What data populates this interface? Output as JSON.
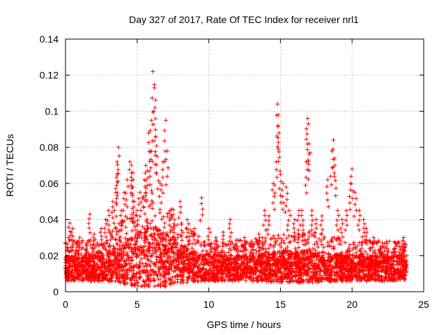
{
  "chart_data": {
    "type": "scatter",
    "title": "Day 327 of 2017, Rate Of TEC Index for receiver nrl1",
    "xlabel": "GPS time / hours",
    "ylabel": "ROTI / TECUs",
    "xlim": [
      0,
      25
    ],
    "ylim": [
      0,
      0.14
    ],
    "xticks": [
      "0",
      "5",
      "10",
      "15",
      "20",
      "25"
    ],
    "yticks": [
      "0",
      "0.02",
      "0.04",
      "0.06",
      "0.08",
      "0.1",
      "0.12",
      "0.14"
    ],
    "grid": true,
    "legend": "none",
    "marker": "plus",
    "color": "#ff0000",
    "series": [
      {
        "points": [
          [
            0.1,
            0.012
          ],
          [
            0.2,
            0.03
          ],
          [
            0.3,
            0.038
          ],
          [
            0.5,
            0.035
          ],
          [
            0.8,
            0.028
          ],
          [
            1.0,
            0.03
          ],
          [
            1.5,
            0.027
          ],
          [
            1.7,
            0.043
          ],
          [
            2.0,
            0.032
          ],
          [
            2.5,
            0.035
          ],
          [
            2.8,
            0.04
          ],
          [
            3.0,
            0.045
          ],
          [
            3.3,
            0.05
          ],
          [
            3.5,
            0.055
          ],
          [
            3.6,
            0.065
          ],
          [
            3.6,
            0.072
          ],
          [
            3.7,
            0.08
          ],
          [
            3.9,
            0.045
          ],
          [
            4.1,
            0.055
          ],
          [
            4.3,
            0.062
          ],
          [
            4.5,
            0.072
          ],
          [
            4.6,
            0.07
          ],
          [
            4.7,
            0.066
          ],
          [
            4.8,
            0.05
          ],
          [
            5.0,
            0.045
          ],
          [
            5.2,
            0.055
          ],
          [
            5.5,
            0.062
          ],
          [
            5.6,
            0.07
          ],
          [
            5.7,
            0.067
          ],
          [
            5.8,
            0.088
          ],
          [
            5.9,
            0.078
          ],
          [
            6.0,
            0.095
          ],
          [
            6.1,
            0.122
          ],
          [
            6.2,
            0.113
          ],
          [
            6.25,
            0.102
          ],
          [
            6.3,
            0.086
          ],
          [
            6.4,
            0.075
          ],
          [
            6.6,
            0.06
          ],
          [
            6.8,
            0.072
          ],
          [
            7.0,
            0.095
          ],
          [
            7.1,
            0.078
          ],
          [
            7.3,
            0.045
          ],
          [
            7.6,
            0.04
          ],
          [
            8.0,
            0.05
          ],
          [
            8.5,
            0.04
          ],
          [
            9.0,
            0.035
          ],
          [
            9.5,
            0.052
          ],
          [
            10.0,
            0.035
          ],
          [
            10.5,
            0.03
          ],
          [
            11.0,
            0.033
          ],
          [
            11.5,
            0.04
          ],
          [
            12.0,
            0.025
          ],
          [
            12.5,
            0.03
          ],
          [
            13.0,
            0.028
          ],
          [
            13.5,
            0.032
          ],
          [
            13.9,
            0.045
          ],
          [
            14.2,
            0.042
          ],
          [
            14.5,
            0.06
          ],
          [
            14.7,
            0.072
          ],
          [
            14.8,
            0.104
          ],
          [
            14.85,
            0.098
          ],
          [
            14.9,
            0.088
          ],
          [
            15.0,
            0.065
          ],
          [
            15.2,
            0.06
          ],
          [
            15.4,
            0.058
          ],
          [
            15.6,
            0.045
          ],
          [
            16.0,
            0.04
          ],
          [
            16.3,
            0.045
          ],
          [
            16.5,
            0.045
          ],
          [
            16.8,
            0.072
          ],
          [
            16.9,
            0.096
          ],
          [
            16.95,
            0.093
          ],
          [
            17.0,
            0.082
          ],
          [
            17.2,
            0.045
          ],
          [
            17.5,
            0.04
          ],
          [
            17.9,
            0.042
          ],
          [
            18.3,
            0.062
          ],
          [
            18.6,
            0.078
          ],
          [
            18.7,
            0.084
          ],
          [
            18.8,
            0.07
          ],
          [
            19.0,
            0.045
          ],
          [
            19.3,
            0.04
          ],
          [
            19.6,
            0.045
          ],
          [
            19.9,
            0.06
          ],
          [
            20.0,
            0.068
          ],
          [
            20.2,
            0.055
          ],
          [
            20.5,
            0.045
          ],
          [
            20.8,
            0.04
          ],
          [
            21.0,
            0.035
          ],
          [
            21.5,
            0.03
          ],
          [
            22.0,
            0.025
          ],
          [
            22.5,
            0.022
          ],
          [
            23.0,
            0.027
          ],
          [
            23.3,
            0.025
          ],
          [
            23.6,
            0.03
          ],
          [
            23.8,
            0.015
          ]
        ]
      }
    ]
  }
}
